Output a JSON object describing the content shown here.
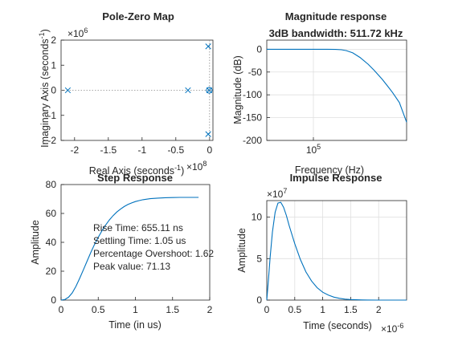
{
  "colors": {
    "line": "#0072BD",
    "axis": "#262626",
    "grid": "#dfdfdf",
    "bg": "#ffffff"
  },
  "chart_data": [
    {
      "id": "pz",
      "type": "scatter",
      "title": "Pole-Zero Map",
      "xlabel": "Real Axis (seconds",
      "xlabel_sup": "-1",
      "xexp_base": "×10",
      "xexp_power": "8",
      "ylabel": "Imaginary Axis (seconds",
      "ylabel_sup": "-1",
      "yexp_base": "×10",
      "yexp_power": "6",
      "xlim": [
        -2.2,
        0.05
      ],
      "ylim": [
        -2,
        2
      ],
      "xticks": [
        -2,
        -1.5,
        -1,
        -0.5,
        0
      ],
      "xticklabels": [
        "-2",
        "-1.5",
        "-1",
        "-0.5",
        "0"
      ],
      "yticks": [
        -2,
        -1,
        0,
        1,
        2
      ],
      "yticklabels": [
        "-2",
        "-1",
        "0",
        "1",
        "2"
      ],
      "grid": false,
      "poles": [
        {
          "x": -2.1,
          "y": 0
        },
        {
          "x": -0.32,
          "y": 0
        },
        {
          "x": -0.02,
          "y": 1.75
        },
        {
          "x": -0.02,
          "y": -1.75
        },
        {
          "x": -0.005,
          "y": 0
        }
      ],
      "zeros": [
        {
          "x": -0.005,
          "y": 0
        }
      ]
    },
    {
      "id": "mag",
      "type": "line",
      "title": "Magnitude response",
      "subtitle": "3dB bandwidth: 511.72 kHz",
      "xlabel": "Frequency  (Hz)",
      "ylabel": "Magnitude (dB)",
      "xscale": "log",
      "xlim": [
        10000,
        10000000
      ],
      "ylim": [
        -200,
        20
      ],
      "xticks": [
        100000
      ],
      "xticklabels": [
        "10"
      ],
      "xticksup": [
        "5"
      ],
      "yticks": [
        -200,
        -150,
        -100,
        -50,
        0
      ],
      "yticklabels": [
        "-200",
        "-150",
        "-100",
        "-50",
        "0"
      ],
      "grid": true,
      "x": [
        10000,
        20000,
        50000,
        100000,
        200000,
        300000,
        400000,
        511720,
        700000,
        1000000,
        1500000,
        2000000,
        3000000,
        4000000,
        5000000,
        7000000,
        10000000
      ],
      "y": [
        0,
        0,
        0,
        0,
        -0.1,
        -0.4,
        -1.2,
        -3,
        -8,
        -18,
        -33,
        -46,
        -66,
        -82,
        -95,
        -117,
        -160
      ]
    },
    {
      "id": "step",
      "type": "line",
      "title": "Step Response",
      "xlabel": "Time (in us)",
      "ylabel": "Amplitude",
      "xlim": [
        0,
        2
      ],
      "ylim": [
        0,
        80
      ],
      "xticks": [
        0,
        0.5,
        1,
        1.5,
        2
      ],
      "xticklabels": [
        "0",
        "0.5",
        "1",
        "1.5",
        "2"
      ],
      "yticks": [
        0,
        20,
        40,
        60,
        80
      ],
      "yticklabels": [
        "0",
        "20",
        "40",
        "60",
        "80"
      ],
      "grid": false,
      "x": [
        0,
        0.05,
        0.1,
        0.15,
        0.2,
        0.25,
        0.3,
        0.35,
        0.4,
        0.45,
        0.5,
        0.55,
        0.6,
        0.65,
        0.7,
        0.75,
        0.8,
        0.85,
        0.9,
        0.95,
        1.0,
        1.05,
        1.1,
        1.2,
        1.3,
        1.4,
        1.5,
        1.6,
        1.7,
        1.8,
        1.85
      ],
      "y": [
        0,
        0.4,
        2,
        5,
        9.5,
        15,
        21,
        27,
        33,
        38.5,
        43.5,
        48,
        52,
        55.5,
        58.5,
        61,
        63,
        64.8,
        66.2,
        67.3,
        68.2,
        68.9,
        69.5,
        70.2,
        70.6,
        70.9,
        71.0,
        71.1,
        71.13,
        71.13,
        71.13
      ],
      "annotations": [
        "Rise Time: 655.11 ns",
        "Settling Time: 1.05 us",
        "Percentage Overshoot: 1.62",
        "Peak value: 71.13"
      ]
    },
    {
      "id": "imp",
      "type": "line",
      "title": "Impulse Response",
      "xlabel": "Time (seconds)",
      "ylabel": "Amplitude",
      "xexp_base": "×10",
      "xexp_power": "-6",
      "yexp_base": "×10",
      "yexp_power": "7",
      "xlim": [
        0,
        2.5
      ],
      "ylim": [
        0,
        12
      ],
      "xticks": [
        0,
        0.5,
        1,
        1.5,
        2
      ],
      "xticklabels": [
        "0",
        "0.5",
        "1",
        "1.5",
        "2"
      ],
      "yticks": [
        0,
        5,
        10
      ],
      "yticklabels": [
        "0",
        "5",
        "10"
      ],
      "grid": true,
      "x": [
        0,
        0.03,
        0.06,
        0.1,
        0.15,
        0.2,
        0.25,
        0.3,
        0.35,
        0.4,
        0.5,
        0.6,
        0.7,
        0.8,
        0.9,
        1.0,
        1.1,
        1.2,
        1.3,
        1.4,
        1.5,
        1.6,
        1.7,
        1.8,
        2.0,
        2.2,
        2.5
      ],
      "y": [
        0,
        2.5,
        5.2,
        8.2,
        10.6,
        11.7,
        11.8,
        11.2,
        10.2,
        9.0,
        6.8,
        4.9,
        3.4,
        2.3,
        1.5,
        0.95,
        0.6,
        0.36,
        0.21,
        0.12,
        0.07,
        0.04,
        0.02,
        0.01,
        0,
        0,
        0
      ]
    }
  ]
}
